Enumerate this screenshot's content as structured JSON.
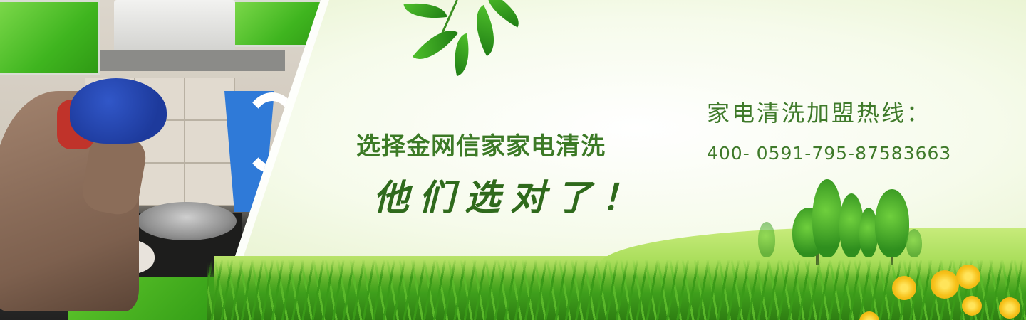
{
  "banner": {
    "slogan_line1": "选择金网信家家电清洗",
    "slogan_line2": "他们选对了！",
    "hotline_title": "家电清洗加盟热线：",
    "hotline_number": "400- 0591-795-87583663"
  },
  "icons": [
    "leaf-icon",
    "tree-icon",
    "flower-icon"
  ],
  "colors": {
    "text_green": "#3c7a26",
    "script_green": "#2f6a1c",
    "grass_green": "#3f9f1c",
    "flower_yellow": "#f7c21b"
  }
}
